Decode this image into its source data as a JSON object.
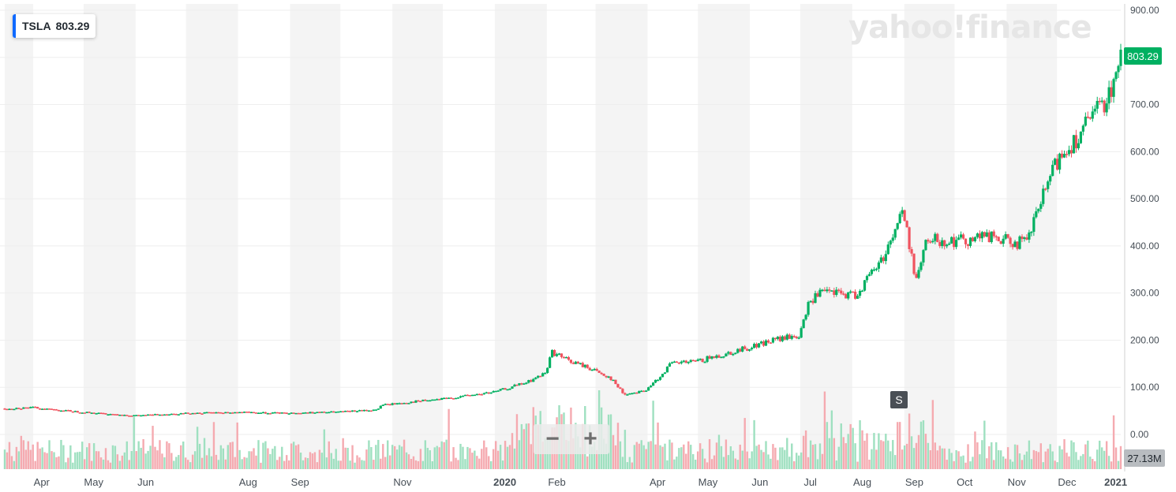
{
  "header": {
    "symbol": "TSLA",
    "price": "803.29"
  },
  "watermark": "yahoo!finance",
  "controls": {
    "zoom_out": "−",
    "zoom_in": "+"
  },
  "event_marker": "S",
  "price_badge": "803.29",
  "volume_badge": "27.13M",
  "colors": {
    "up": "#00b061",
    "down": "#f0535f",
    "volume_up": "#9fe0c0",
    "volume_down": "#f5aab0",
    "band": "#f4f4f4",
    "grid": "#eeeeee",
    "badge": "#00b061"
  },
  "chart_data": {
    "type": "candlestick",
    "title": "",
    "y_axis": {
      "min": 0,
      "max": 900,
      "ticks": [
        "900.00",
        "800.00",
        "700.00",
        "600.00",
        "500.00",
        "400.00",
        "300.00",
        "200.00",
        "100.00",
        "0.00"
      ]
    },
    "x_axis": {
      "labels": [
        "Apr",
        "May",
        "Jun",
        "Aug",
        "Sep",
        "Nov",
        "2020",
        "Feb",
        "Apr",
        "May",
        "Jun",
        "Jul",
        "Aug",
        "Sep",
        "Oct",
        "Nov",
        "Dec",
        "2021"
      ]
    },
    "price_series": {
      "name": "TSLA",
      "dates": [
        "2019-03-15",
        "2019-04-01",
        "2019-05-01",
        "2019-06-01",
        "2019-07-01",
        "2019-08-01",
        "2019-09-01",
        "2019-10-01",
        "2019-10-23",
        "2019-10-25",
        "2019-11-15",
        "2019-12-01",
        "2020-01-01",
        "2020-01-20",
        "2020-01-31",
        "2020-02-04",
        "2020-02-15",
        "2020-02-27",
        "2020-03-10",
        "2020-03-18",
        "2020-04-01",
        "2020-04-15",
        "2020-05-01",
        "2020-06-01",
        "2020-06-15",
        "2020-07-01",
        "2020-07-06",
        "2020-07-13",
        "2020-07-20",
        "2020-08-03",
        "2020-08-20",
        "2020-08-31",
        "2020-09-08",
        "2020-09-15",
        "2020-10-01",
        "2020-10-20",
        "2020-11-01",
        "2020-11-13",
        "2020-11-20",
        "2020-12-01",
        "2020-12-15",
        "2021-01-01",
        "2021-01-08"
      ],
      "close": [
        55,
        57,
        47,
        40,
        45,
        47,
        45,
        48,
        52,
        62,
        70,
        75,
        90,
        110,
        130,
        175,
        155,
        140,
        120,
        85,
        95,
        150,
        155,
        185,
        200,
        210,
        280,
        300,
        300,
        295,
        380,
        475,
        330,
        415,
        410,
        420,
        410,
        405,
        480,
        580,
        640,
        720,
        803.29
      ]
    },
    "volume_series": {
      "name": "Volume",
      "latest": "27.13M"
    }
  }
}
